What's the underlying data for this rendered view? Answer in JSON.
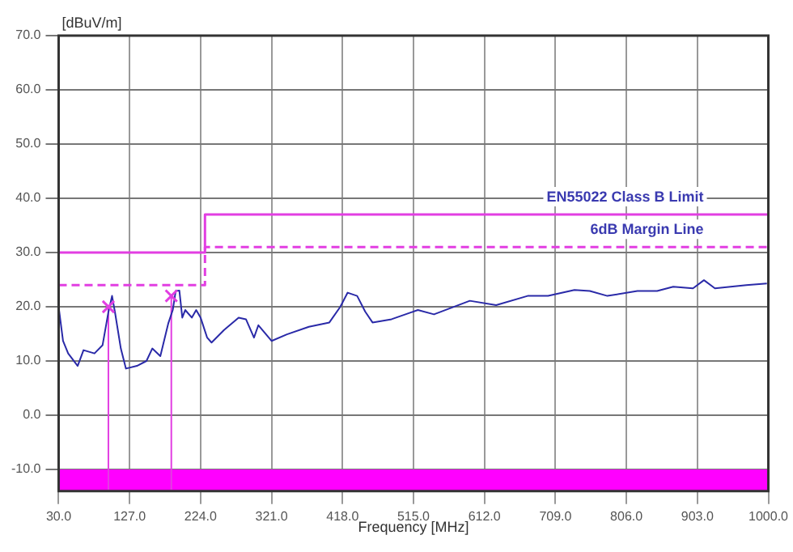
{
  "chart_data": {
    "type": "line",
    "ylabel": "[dBuV/m]",
    "xlabel": "Frequency [MHz]",
    "xlim": [
      30,
      1000
    ],
    "xticks": [
      {
        "value": 30,
        "label": "30.0"
      },
      {
        "value": 127,
        "label": "127.0"
      },
      {
        "value": 224,
        "label": "224.0"
      },
      {
        "value": 321,
        "label": "321.0"
      },
      {
        "value": 418,
        "label": "418.0"
      },
      {
        "value": 515,
        "label": "515.0"
      },
      {
        "value": 612,
        "label": "612.0"
      },
      {
        "value": 709,
        "label": "709.0"
      },
      {
        "value": 806,
        "label": "806.0"
      },
      {
        "value": 903,
        "label": "903.0"
      },
      {
        "value": 1000,
        "label": "1000.0"
      }
    ],
    "ylim": [
      -14,
      70
    ],
    "yticks": [
      {
        "value": -10,
        "label": "-10.0"
      },
      {
        "value": 0,
        "label": "0.0"
      },
      {
        "value": 10,
        "label": "10.0"
      },
      {
        "value": 20,
        "label": "20.0"
      },
      {
        "value": 30,
        "label": "30.0"
      },
      {
        "value": 40,
        "label": "40.0"
      },
      {
        "value": 50,
        "label": "50.0"
      },
      {
        "value": 60,
        "label": "60.0"
      },
      {
        "value": 70,
        "label": "70.0"
      }
    ],
    "grid": true,
    "legend": false,
    "marker": "none",
    "line_style": "solid",
    "series": [
      {
        "name": "EN55022 Class B Limit",
        "type": "step",
        "color": "#e23ee2",
        "x": [
          30,
          230,
          1000
        ],
        "values": [
          30,
          37,
          37
        ]
      },
      {
        "name": "6dB Margin Line",
        "type": "step",
        "line_style": "dashed",
        "color": "#e23ee2",
        "x": [
          30,
          230,
          1000
        ],
        "values": [
          24,
          31,
          31
        ]
      },
      {
        "type": "line",
        "color": "#2a2aa8",
        "x": [
          30,
          36,
          43,
          56,
          64,
          79,
          90,
          98,
          103,
          107,
          115,
          122,
          137,
          150,
          158,
          169,
          180,
          186,
          190,
          195,
          199,
          203,
          212,
          218,
          224,
          233,
          239,
          256,
          276,
          286,
          297,
          303,
          321,
          342,
          372,
          400,
          415,
          425,
          438,
          449,
          459,
          485,
          521,
          543,
          592,
          628,
          671,
          699,
          735,
          756,
          780,
          821,
          848,
          870,
          897,
          912,
          927,
          970,
          998
        ],
        "values": [
          20,
          13.7,
          11.4,
          9.1,
          12,
          11.4,
          12.9,
          19,
          22,
          19,
          12.3,
          8.6,
          9.1,
          10,
          12.3,
          10.9,
          17,
          19.4,
          22.9,
          23,
          18,
          19.4,
          18,
          19.4,
          18,
          14.3,
          13.4,
          15.7,
          18,
          17.7,
          14.3,
          16.6,
          13.7,
          14.9,
          16.3,
          17.1,
          20,
          22.6,
          22,
          19.1,
          17.1,
          17.7,
          19.4,
          18.6,
          21.1,
          20.3,
          22,
          22,
          23.1,
          22.9,
          22,
          22.9,
          22.9,
          23.7,
          23.4,
          24.9,
          23.4,
          24,
          24.3
        ]
      },
      {
        "type": "scatter",
        "marker": "cross",
        "color": "#e23ee2",
        "x": [
          98,
          184
        ],
        "values": [
          20,
          22
        ]
      }
    ],
    "ref_lines": [
      {
        "axis": "x",
        "value": 98,
        "color": "#e23ee2"
      },
      {
        "axis": "x",
        "value": 184,
        "color": "#e23ee2"
      }
    ],
    "bands": [
      {
        "axis": "y",
        "from": -14,
        "to": -10,
        "color": "#ff00ff"
      }
    ]
  }
}
